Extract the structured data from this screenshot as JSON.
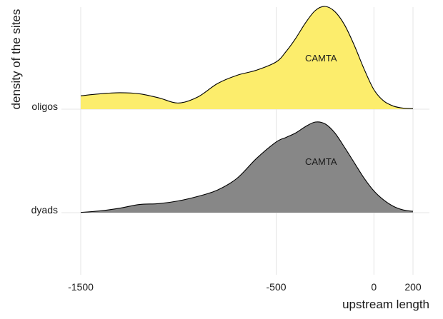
{
  "chart_data": {
    "type": "ridgeline",
    "title": "",
    "xlabel": "upstream length",
    "ylabel": "density of the sites",
    "xlim": [
      -1500,
      200
    ],
    "x_ticks": [
      -1500,
      -500,
      0,
      200
    ],
    "x_tick_labels": [
      "-1500",
      "-500",
      "0",
      "200"
    ],
    "grid": true,
    "legend": "none",
    "categories": [
      "oligos",
      "dyads"
    ],
    "series": [
      {
        "name": "oligos",
        "color": "#fced6c",
        "annotation": "CAMTA",
        "annotation_x": -300,
        "x": [
          -1500,
          -1400,
          -1300,
          -1200,
          -1100,
          -1000,
          -900,
          -800,
          -700,
          -600,
          -500,
          -450,
          -400,
          -350,
          -300,
          -250,
          -200,
          -150,
          -100,
          -50,
          0,
          50,
          100,
          150,
          200
        ],
        "y": [
          0.13,
          0.15,
          0.16,
          0.15,
          0.11,
          0.06,
          0.12,
          0.25,
          0.33,
          0.38,
          0.46,
          0.56,
          0.69,
          0.84,
          0.96,
          1.0,
          0.95,
          0.82,
          0.62,
          0.39,
          0.19,
          0.08,
          0.03,
          0.01,
          0.005
        ]
      },
      {
        "name": "dyads",
        "color": "#878787",
        "annotation": "CAMTA",
        "annotation_x": -300,
        "x": [
          -1500,
          -1400,
          -1300,
          -1200,
          -1100,
          -1000,
          -900,
          -800,
          -700,
          -600,
          -500,
          -450,
          -400,
          -350,
          -300,
          -250,
          -200,
          -150,
          -100,
          -50,
          0,
          50,
          100,
          150,
          200
        ],
        "y": [
          0.003,
          0.02,
          0.05,
          0.09,
          0.1,
          0.13,
          0.18,
          0.25,
          0.38,
          0.6,
          0.78,
          0.83,
          0.88,
          0.95,
          1.0,
          0.98,
          0.88,
          0.72,
          0.55,
          0.38,
          0.24,
          0.14,
          0.07,
          0.03,
          0.015
        ]
      }
    ]
  }
}
